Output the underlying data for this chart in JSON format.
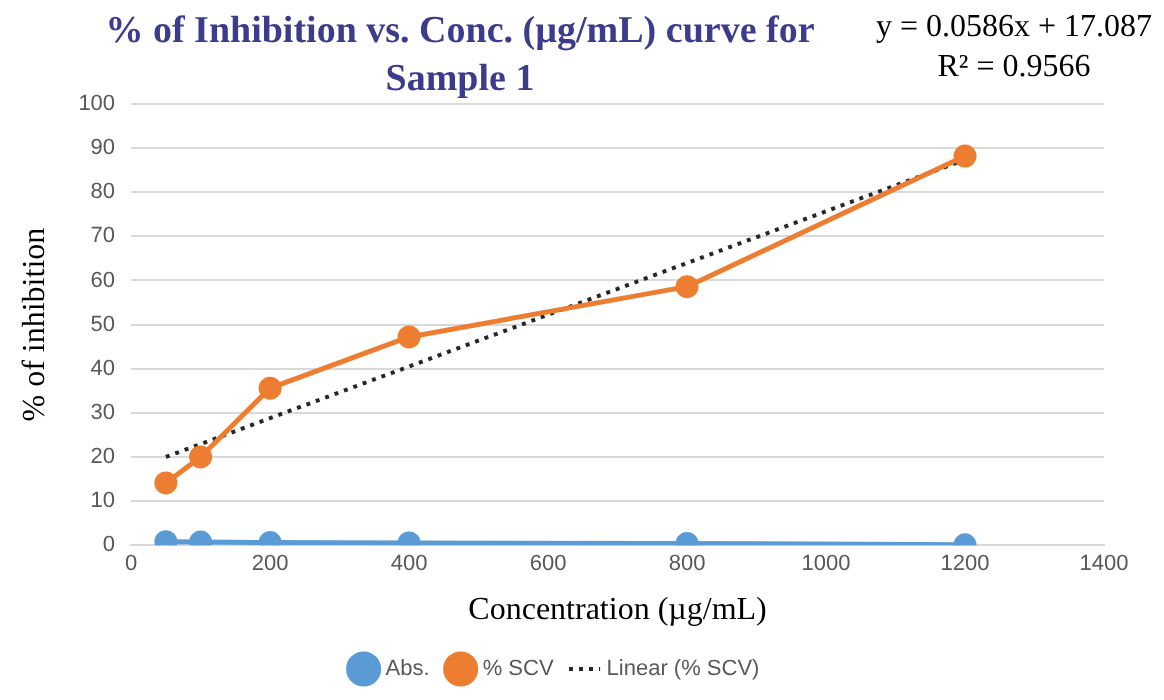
{
  "chart_data": {
    "type": "line",
    "title": "% of Inhibition vs. Conc. (µg/mL) curve for Sample 1",
    "xlabel": "Concentration (µg/mL)",
    "ylabel": "% of inhibition",
    "x": [
      50,
      100,
      200,
      400,
      800,
      1200
    ],
    "series": [
      {
        "name": "Abs.",
        "color": "#5b9bd5",
        "values": [
          0.8,
          0.7,
          0.6,
          0.5,
          0.4,
          0.1
        ]
      },
      {
        "name": "% SCV",
        "color": "#ed7d31",
        "values": [
          14.1,
          20,
          35.6,
          47.2,
          58.6,
          88.2
        ]
      },
      {
        "name": "Linear (% SCV)",
        "color": "#262626",
        "type": "line",
        "x": [
          50,
          1200
        ],
        "values": [
          20.0,
          87.4
        ],
        "marker": "none",
        "line_style": "dotted"
      }
    ],
    "annotations": [
      "y = 0.0586x + 17.087",
      "R² = 0.9566"
    ],
    "xlim": [
      0,
      1400
    ],
    "xticks": [
      0,
      200,
      400,
      600,
      800,
      1000,
      1200,
      1400
    ],
    "ylim": [
      0,
      100
    ],
    "yticks": [
      0,
      10,
      20,
      30,
      40,
      50,
      60,
      70,
      80,
      90,
      100
    ],
    "grid": "y",
    "legend": "bottom",
    "marker": "circle",
    "line_style": "solid"
  }
}
